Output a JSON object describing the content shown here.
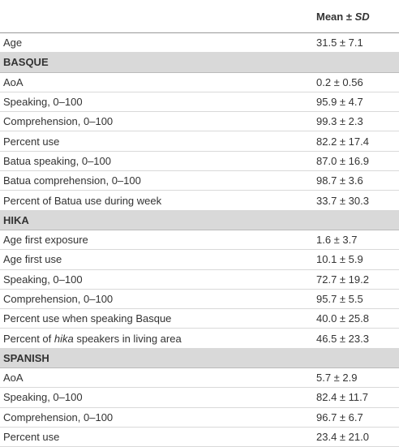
{
  "table": {
    "value_header": [
      "Mean ± ",
      "SD"
    ],
    "sections": [
      {
        "rows": [
          {
            "label": "Age",
            "value": "31.5 ± 7.1"
          }
        ]
      },
      {
        "title": "BASQUE",
        "rows": [
          {
            "label": "AoA",
            "value": "0.2 ± 0.56"
          },
          {
            "label": "Speaking, 0–100",
            "value": "95.9 ± 4.7"
          },
          {
            "label": "Comprehension, 0–100",
            "value": "99.3 ± 2.3"
          },
          {
            "label": "Percent use",
            "value": "82.2 ± 17.4"
          },
          {
            "label": "Batua speaking, 0–100",
            "value": "87.0 ± 16.9"
          },
          {
            "label": "Batua comprehension, 0–100",
            "value": "98.7 ± 3.6"
          },
          {
            "label": "Percent of Batua use during week",
            "value": "33.7 ± 30.3"
          }
        ]
      },
      {
        "title": "HIKA",
        "rows": [
          {
            "label": "Age first exposure",
            "value": "1.6 ± 3.7"
          },
          {
            "label": "Age first use",
            "value": "10.1 ± 5.9"
          },
          {
            "label": "Speaking, 0–100",
            "value": "72.7 ± 19.2"
          },
          {
            "label": "Comprehension, 0–100",
            "value": "95.7 ± 5.5"
          },
          {
            "label": "Percent use when speaking Basque",
            "value": "40.0 ± 25.8"
          },
          {
            "label": [
              "Percent of ",
              "hika",
              " speakers in living area"
            ],
            "value": "46.5 ± 23.3"
          }
        ]
      },
      {
        "title": "SPANISH",
        "rows": [
          {
            "label": "AoA",
            "value": "5.7 ± 2.9"
          },
          {
            "label": "Speaking, 0–100",
            "value": "82.4 ± 11.7"
          },
          {
            "label": "Comprehension, 0–100",
            "value": "96.7 ± 6.7"
          },
          {
            "label": "Percent use",
            "value": "23.4 ± 21.0"
          }
        ]
      }
    ]
  }
}
